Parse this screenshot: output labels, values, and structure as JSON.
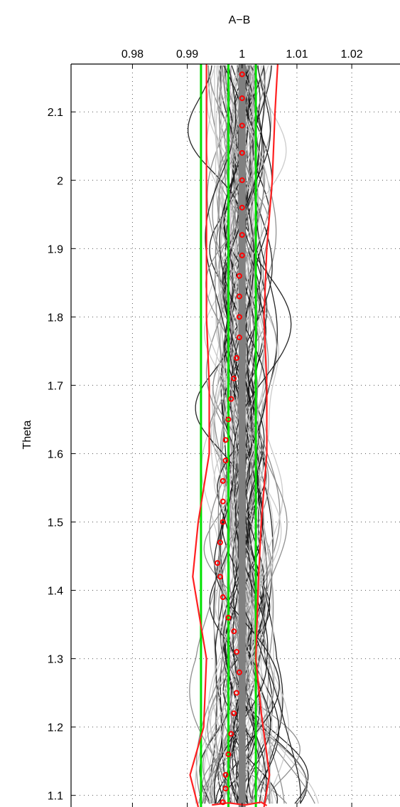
{
  "chart_data": {
    "type": "line",
    "title": "A−B",
    "ylabel": "Theta",
    "xlabel": "",
    "xlim": [
      0.9688,
      1.0288
    ],
    "ylim": [
      1.083,
      2.17
    ],
    "x_tick_labels": [
      "0.98",
      "0.99",
      "1",
      "1.01",
      "1.02"
    ],
    "x_ticks": [
      0.98,
      0.99,
      1.0,
      1.01,
      1.02
    ],
    "y_tick_labels": [
      "1.1",
      "1.2",
      "1.3",
      "1.4",
      "1.5",
      "1.6",
      "1.7",
      "1.8",
      "1.9",
      "2",
      "2.1"
    ],
    "y_ticks": [
      1.1,
      1.2,
      1.3,
      1.4,
      1.5,
      1.6,
      1.7,
      1.8,
      1.9,
      2.0,
      2.1
    ],
    "grid": true,
    "colors": {
      "ensemble_light": "#c8c8c8",
      "ensemble_mid": "#8a8a8a",
      "ensemble_dark": "#1a1a1a",
      "reference": "#808080",
      "green": "#00e000",
      "red": "#ff2020",
      "markers": "#ff0000"
    },
    "series": [
      {
        "style": "green-line",
        "values": [
          [
            0.9925,
            1.083
          ],
          [
            0.9925,
            2.17
          ]
        ]
      },
      {
        "style": "green-line",
        "values": [
          [
            0.9975,
            1.083
          ],
          [
            0.9975,
            2.17
          ]
        ]
      },
      {
        "style": "green-line",
        "values": [
          [
            1.0025,
            1.083
          ],
          [
            1.0025,
            2.17
          ]
        ]
      },
      {
        "style": "red-line",
        "values": [
          [
            0.992,
            1.083
          ],
          [
            0.9905,
            1.13
          ],
          [
            0.993,
            1.2
          ],
          [
            0.9935,
            1.3
          ],
          [
            0.991,
            1.42
          ],
          [
            0.992,
            1.5
          ],
          [
            0.994,
            1.6
          ],
          [
            0.994,
            1.7
          ],
          [
            0.9935,
            1.8
          ],
          [
            0.9935,
            1.9
          ],
          [
            0.9935,
            2.0
          ],
          [
            0.9935,
            2.1
          ],
          [
            0.9935,
            2.17
          ]
        ]
      },
      {
        "style": "red-line",
        "values": [
          [
            1.004,
            1.083
          ],
          [
            1.005,
            1.13
          ],
          [
            1.0035,
            1.22
          ],
          [
            1.0025,
            1.3
          ],
          [
            1.003,
            1.42
          ],
          [
            1.0035,
            1.5
          ],
          [
            1.0045,
            1.6
          ],
          [
            1.0045,
            1.7
          ],
          [
            1.004,
            1.8
          ],
          [
            1.0045,
            1.9
          ],
          [
            1.0055,
            2.0
          ],
          [
            1.006,
            2.1
          ],
          [
            1.0065,
            2.17
          ]
        ]
      },
      {
        "style": "red-line",
        "values": [
          [
            0.9945,
            1.086
          ],
          [
            0.9975,
            1.089
          ],
          [
            1.0005,
            1.086
          ],
          [
            1.0035,
            1.09
          ],
          [
            1.0045,
            1.085
          ]
        ]
      },
      {
        "style": "markers",
        "values": [
          [
            0.9965,
            1.09
          ],
          [
            0.997,
            1.11
          ],
          [
            0.997,
            1.13
          ],
          [
            0.9975,
            1.16
          ],
          [
            0.998,
            1.19
          ],
          [
            0.9985,
            1.22
          ],
          [
            0.999,
            1.25
          ],
          [
            0.9995,
            1.28
          ],
          [
            0.999,
            1.31
          ],
          [
            0.9985,
            1.34
          ],
          [
            0.9975,
            1.36
          ],
          [
            0.9965,
            1.39
          ],
          [
            0.996,
            1.42
          ],
          [
            0.9955,
            1.44
          ],
          [
            0.996,
            1.47
          ],
          [
            0.9965,
            1.5
          ],
          [
            0.9965,
            1.53
          ],
          [
            0.9965,
            1.56
          ],
          [
            0.997,
            1.59
          ],
          [
            0.997,
            1.62
          ],
          [
            0.9975,
            1.65
          ],
          [
            0.998,
            1.68
          ],
          [
            0.9985,
            1.71
          ],
          [
            0.999,
            1.74
          ],
          [
            0.9995,
            1.77
          ],
          [
            0.9995,
            1.8
          ],
          [
            0.9995,
            1.83
          ],
          [
            0.9995,
            1.86
          ],
          [
            1.0,
            1.89
          ],
          [
            1.0,
            1.92
          ],
          [
            1.0,
            1.96
          ],
          [
            1.0,
            2.0
          ],
          [
            1.0,
            2.04
          ],
          [
            1.0,
            2.08
          ],
          [
            1.0,
            2.12
          ],
          [
            1.0,
            2.155
          ]
        ]
      }
    ]
  }
}
